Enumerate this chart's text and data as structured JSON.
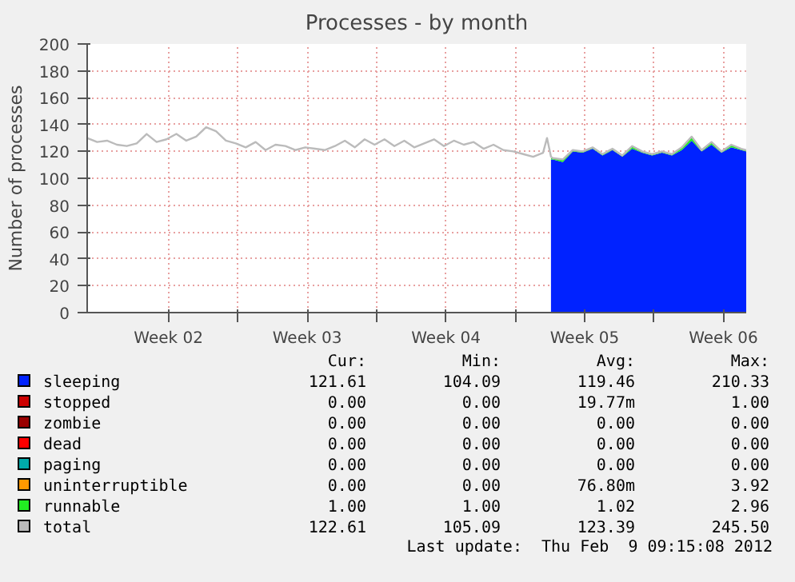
{
  "chart_data": {
    "type": "area",
    "title": "Processes - by month",
    "ylabel": "Number of processes",
    "stacked": true,
    "grid": true,
    "legend": "bottom",
    "xlim": [
      "2012-01-07T03:15",
      "2012-02-09T09:15"
    ],
    "ylim": [
      0,
      200
    ],
    "xticks": [
      {
        "value": "2012-01-11T05:39",
        "label": "Week 02"
      },
      {
        "value": "2012-01-14T17:39",
        "label": null
      },
      {
        "value": "2012-01-18T05:39",
        "label": "Week 03"
      },
      {
        "value": "2012-01-21T17:39",
        "label": null
      },
      {
        "value": "2012-01-25T05:39",
        "label": "Week 04"
      },
      {
        "value": "2012-01-28T17:39",
        "label": null
      },
      {
        "value": "2012-02-01T05:39",
        "label": "Week 05"
      },
      {
        "value": "2012-02-04T17:39",
        "label": null
      },
      {
        "value": "2012-02-08T05:39",
        "label": "Week 06"
      }
    ],
    "yticks": [
      0,
      20,
      40,
      60,
      80,
      100,
      120,
      140,
      160,
      180,
      200
    ],
    "x": [
      "2012-01-30T12:51",
      "2012-01-30T15:15",
      "2012-01-31T03:15",
      "2012-01-31T15:15",
      "2012-02-01T03:15",
      "2012-02-01T15:15",
      "2012-02-02T03:15",
      "2012-02-02T15:15",
      "2012-02-03T03:15",
      "2012-02-03T15:15",
      "2012-02-04T03:15",
      "2012-02-04T15:15",
      "2012-02-05T03:15",
      "2012-02-05T15:15",
      "2012-02-06T03:15",
      "2012-02-06T15:15",
      "2012-02-07T03:15",
      "2012-02-07T15:15",
      "2012-02-08T03:15",
      "2012-02-08T15:15",
      "2012-02-09T03:15",
      "2012-02-09T09:15"
    ],
    "series": [
      {
        "name": "sleeping",
        "color": "#0022ff",
        "values": [
          114,
          114,
          112,
          120,
          119,
          122,
          117,
          121,
          116,
          122,
          119,
          117,
          119,
          117,
          121,
          128,
          120,
          125,
          119,
          123,
          121,
          120
        ]
      },
      {
        "name": "stopped",
        "color": "#cc0000",
        "values": [
          null,
          null,
          null,
          null,
          null,
          null,
          null,
          null,
          null,
          null,
          null,
          null,
          null,
          null,
          null,
          null,
          null,
          null,
          null,
          null,
          null,
          null
        ]
      },
      {
        "name": "zombie",
        "color": "#990000",
        "values": [
          null,
          null,
          null,
          null,
          null,
          null,
          null,
          null,
          null,
          null,
          null,
          null,
          null,
          null,
          null,
          null,
          null,
          null,
          null,
          null,
          null,
          null
        ]
      },
      {
        "name": "dead",
        "color": "#ff0000",
        "values": [
          null,
          null,
          null,
          null,
          null,
          null,
          null,
          null,
          null,
          null,
          null,
          null,
          null,
          null,
          null,
          null,
          null,
          null,
          null,
          null,
          null,
          null
        ]
      },
      {
        "name": "paging",
        "color": "#00aaaa",
        "values": [
          null,
          null,
          null,
          null,
          null,
          null,
          null,
          null,
          null,
          null,
          null,
          null,
          null,
          null,
          null,
          null,
          null,
          null,
          null,
          null,
          null,
          null
        ]
      },
      {
        "name": "uninterruptible",
        "color": "#ff9900",
        "values": [
          null,
          null,
          null,
          null,
          null,
          null,
          null,
          null,
          null,
          null,
          null,
          null,
          null,
          null,
          null,
          null,
          null,
          null,
          null,
          null,
          null,
          null
        ]
      },
      {
        "name": "runnable",
        "color": "#22ee22",
        "values": [
          1,
          1,
          2,
          1,
          1,
          1,
          1,
          1,
          1,
          2,
          1,
          1,
          1,
          1,
          2,
          3,
          1,
          2,
          1,
          2,
          1,
          1
        ]
      },
      {
        "name": "total",
        "type": "line",
        "color": "#bbbbbb",
        "x": [
          "2012-01-07T03:15",
          "2012-01-07T15:15",
          "2012-01-08T03:15",
          "2012-01-08T15:15",
          "2012-01-09T03:15",
          "2012-01-09T15:15",
          "2012-01-10T03:15",
          "2012-01-10T15:15",
          "2012-01-11T03:15",
          "2012-01-11T15:15",
          "2012-01-12T03:15",
          "2012-01-12T15:15",
          "2012-01-13T03:15",
          "2012-01-13T15:15",
          "2012-01-14T03:15",
          "2012-01-14T15:15",
          "2012-01-15T03:15",
          "2012-01-15T15:15",
          "2012-01-16T03:15",
          "2012-01-16T15:15",
          "2012-01-17T03:15",
          "2012-01-17T15:15",
          "2012-01-18T03:15",
          "2012-01-18T15:15",
          "2012-01-19T03:15",
          "2012-01-19T15:15",
          "2012-01-20T03:15",
          "2012-01-20T15:15",
          "2012-01-21T03:15",
          "2012-01-21T15:15",
          "2012-01-22T03:15",
          "2012-01-22T15:15",
          "2012-01-23T03:15",
          "2012-01-23T15:15",
          "2012-01-24T03:15",
          "2012-01-24T15:15",
          "2012-01-25T03:15",
          "2012-01-25T15:15",
          "2012-01-26T03:15",
          "2012-01-26T15:15",
          "2012-01-27T03:15",
          "2012-01-27T15:15",
          "2012-01-28T03:15",
          "2012-01-28T15:15",
          "2012-01-29T03:15",
          "2012-01-29T15:15",
          "2012-01-30T03:15",
          "2012-01-30T08:03",
          "2012-01-30T12:51",
          "2012-01-30T15:15",
          "2012-01-31T03:15",
          "2012-01-31T15:15",
          "2012-02-01T03:15",
          "2012-02-01T15:15",
          "2012-02-02T03:15",
          "2012-02-02T15:15",
          "2012-02-03T03:15",
          "2012-02-03T15:15",
          "2012-02-04T03:15",
          "2012-02-04T15:15",
          "2012-02-05T03:15",
          "2012-02-05T15:15",
          "2012-02-06T03:15",
          "2012-02-06T15:15",
          "2012-02-07T03:15",
          "2012-02-07T15:15",
          "2012-02-08T03:15",
          "2012-02-08T15:15",
          "2012-02-09T03:15",
          "2012-02-09T09:15"
        ],
        "values": [
          130,
          127,
          128,
          125,
          124,
          126,
          133,
          127,
          129,
          133,
          128,
          131,
          138,
          135,
          128,
          126,
          123,
          127,
          121,
          125,
          124,
          121,
          123,
          122,
          121,
          124,
          128,
          123,
          129,
          125,
          129,
          124,
          128,
          123,
          126,
          129,
          124,
          128,
          125,
          127,
          122,
          125,
          121,
          120,
          118,
          116,
          119,
          130,
          116,
          115,
          114,
          121,
          120,
          123,
          118,
          122,
          117,
          124,
          120,
          118,
          120,
          118,
          123,
          131,
          121,
          127,
          120,
          125,
          122,
          121
        ]
      }
    ],
    "annotations": [
      "Cur:",
      "Min:",
      "Avg:",
      "Max:",
      "121.61",
      "104.09",
      "119.46",
      "210.33",
      "0.00",
      "0.00",
      "19.77m",
      "1.00",
      "0.00",
      "0.00",
      "0.00",
      "0.00",
      "0.00",
      "0.00",
      "0.00",
      "0.00",
      "0.00",
      "0.00",
      "0.00",
      "0.00",
      "0.00",
      "0.00",
      "76.80m",
      "3.92",
      "1.00",
      "1.00",
      "1.02",
      "2.96",
      "122.61",
      "105.09",
      "123.39",
      "245.50",
      "Last update:  Thu Feb  9 09:15:08 2012"
    ]
  }
}
